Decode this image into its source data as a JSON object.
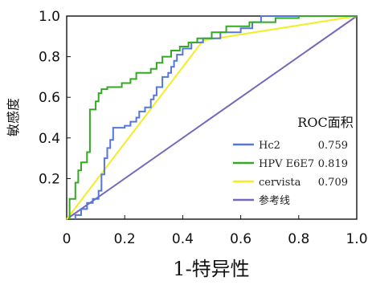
{
  "chart_data": {
    "type": "line",
    "xlabel": "1-特异性",
    "ylabel": "敏感度",
    "xlim": [
      0,
      1
    ],
    "ylim": [
      0,
      1
    ],
    "x_ticks": [
      "0",
      "0.2",
      "0.4",
      "0.6",
      "0.8",
      "1.0"
    ],
    "y_ticks": [
      "0.2",
      "0.4",
      "0.6",
      "0.8",
      "1.0"
    ],
    "grid": false,
    "legend": {
      "title": "ROC面积",
      "placement": "bottom-right"
    },
    "series": [
      {
        "name": "Hc2",
        "auc": "0.759",
        "color": "#5577dd",
        "points": [
          [
            0.03,
            0.0
          ],
          [
            0.03,
            0.02
          ],
          [
            0.05,
            0.02
          ],
          [
            0.05,
            0.05
          ],
          [
            0.07,
            0.05
          ],
          [
            0.07,
            0.08
          ],
          [
            0.09,
            0.08
          ],
          [
            0.09,
            0.1
          ],
          [
            0.11,
            0.1
          ],
          [
            0.11,
            0.14
          ],
          [
            0.12,
            0.14
          ],
          [
            0.12,
            0.22
          ],
          [
            0.13,
            0.22
          ],
          [
            0.13,
            0.3
          ],
          [
            0.14,
            0.3
          ],
          [
            0.14,
            0.35
          ],
          [
            0.15,
            0.35
          ],
          [
            0.15,
            0.39
          ],
          [
            0.16,
            0.39
          ],
          [
            0.16,
            0.45
          ],
          [
            0.2,
            0.45
          ],
          [
            0.2,
            0.46
          ],
          [
            0.22,
            0.46
          ],
          [
            0.22,
            0.48
          ],
          [
            0.24,
            0.48
          ],
          [
            0.24,
            0.5
          ],
          [
            0.25,
            0.5
          ],
          [
            0.25,
            0.53
          ],
          [
            0.27,
            0.53
          ],
          [
            0.27,
            0.55
          ],
          [
            0.29,
            0.55
          ],
          [
            0.29,
            0.59
          ],
          [
            0.3,
            0.59
          ],
          [
            0.3,
            0.61
          ],
          [
            0.31,
            0.61
          ],
          [
            0.31,
            0.65
          ],
          [
            0.33,
            0.65
          ],
          [
            0.33,
            0.7
          ],
          [
            0.35,
            0.7
          ],
          [
            0.35,
            0.72
          ],
          [
            0.36,
            0.72
          ],
          [
            0.36,
            0.75
          ],
          [
            0.37,
            0.75
          ],
          [
            0.37,
            0.78
          ],
          [
            0.38,
            0.78
          ],
          [
            0.38,
            0.81
          ],
          [
            0.4,
            0.81
          ],
          [
            0.4,
            0.84
          ],
          [
            0.43,
            0.84
          ],
          [
            0.43,
            0.87
          ],
          [
            0.47,
            0.87
          ],
          [
            0.47,
            0.89
          ],
          [
            0.53,
            0.89
          ],
          [
            0.53,
            0.92
          ],
          [
            0.6,
            0.92
          ],
          [
            0.6,
            0.94
          ],
          [
            0.64,
            0.94
          ],
          [
            0.64,
            0.97
          ],
          [
            0.67,
            0.97
          ],
          [
            0.67,
            1.0
          ],
          [
            1.0,
            1.0
          ]
        ]
      },
      {
        "name": "HPV E6E7",
        "auc": "0.819",
        "color": "#33aa22",
        "points": [
          [
            0.01,
            0.0
          ],
          [
            0.01,
            0.1
          ],
          [
            0.03,
            0.1
          ],
          [
            0.03,
            0.18
          ],
          [
            0.04,
            0.18
          ],
          [
            0.04,
            0.24
          ],
          [
            0.05,
            0.24
          ],
          [
            0.05,
            0.28
          ],
          [
            0.07,
            0.28
          ],
          [
            0.07,
            0.33
          ],
          [
            0.08,
            0.33
          ],
          [
            0.08,
            0.54
          ],
          [
            0.1,
            0.54
          ],
          [
            0.1,
            0.58
          ],
          [
            0.11,
            0.58
          ],
          [
            0.11,
            0.62
          ],
          [
            0.12,
            0.62
          ],
          [
            0.12,
            0.64
          ],
          [
            0.14,
            0.64
          ],
          [
            0.14,
            0.65
          ],
          [
            0.19,
            0.65
          ],
          [
            0.19,
            0.67
          ],
          [
            0.22,
            0.67
          ],
          [
            0.22,
            0.69
          ],
          [
            0.24,
            0.69
          ],
          [
            0.24,
            0.72
          ],
          [
            0.29,
            0.72
          ],
          [
            0.29,
            0.74
          ],
          [
            0.31,
            0.74
          ],
          [
            0.31,
            0.77
          ],
          [
            0.33,
            0.77
          ],
          [
            0.33,
            0.8
          ],
          [
            0.36,
            0.8
          ],
          [
            0.36,
            0.83
          ],
          [
            0.39,
            0.83
          ],
          [
            0.39,
            0.85
          ],
          [
            0.42,
            0.85
          ],
          [
            0.42,
            0.87
          ],
          [
            0.45,
            0.87
          ],
          [
            0.45,
            0.89
          ],
          [
            0.5,
            0.89
          ],
          [
            0.5,
            0.92
          ],
          [
            0.55,
            0.92
          ],
          [
            0.55,
            0.95
          ],
          [
            0.63,
            0.95
          ],
          [
            0.63,
            0.97
          ],
          [
            0.72,
            0.97
          ],
          [
            0.72,
            0.99
          ],
          [
            0.8,
            0.99
          ],
          [
            0.8,
            1.0
          ],
          [
            1.0,
            1.0
          ]
        ]
      },
      {
        "name": "cervista",
        "auc": "0.709",
        "color": "#f2ee22",
        "points": [
          [
            0.0,
            0.0
          ],
          [
            0.47,
            0.88
          ],
          [
            1.0,
            1.0
          ]
        ]
      },
      {
        "name": "参考线",
        "auc": "",
        "color": "#7766bb",
        "points": [
          [
            0.0,
            0.0
          ],
          [
            1.0,
            1.0
          ]
        ]
      }
    ]
  }
}
